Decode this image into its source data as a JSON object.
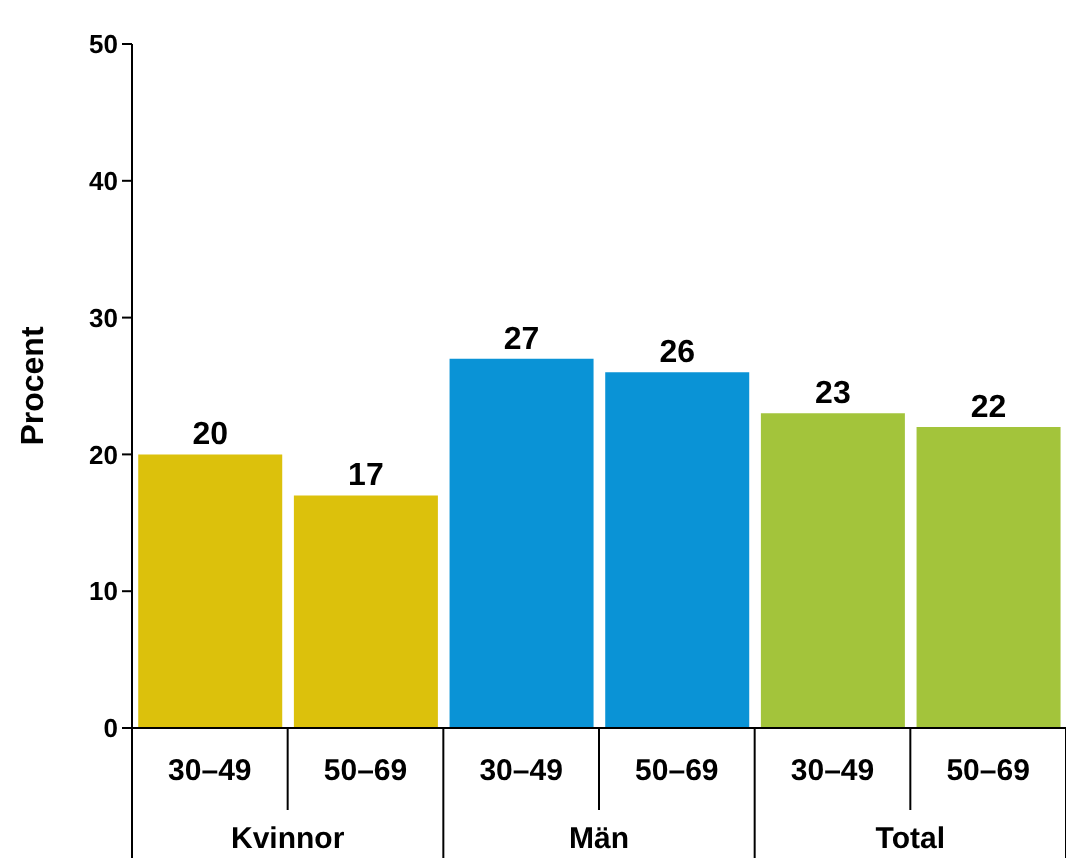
{
  "chart_data": {
    "type": "bar",
    "ylabel": "Procent",
    "categories": [
      "30–49",
      "50–69",
      "30–49",
      "50–69",
      "30–49",
      "50–69"
    ],
    "values": [
      20,
      17,
      27,
      26,
      23,
      22
    ],
    "colors": [
      "#dcc10c",
      "#dcc10c",
      "#0a93d6",
      "#0a93d6",
      "#a3c43b",
      "#a3c43b"
    ],
    "annotations": [
      "Kvinnor",
      "Män",
      "Total"
    ],
    "ylim": [
      0,
      50
    ],
    "yticks": [
      0,
      10,
      20,
      30,
      40,
      50
    ],
    "data_labels": true
  }
}
